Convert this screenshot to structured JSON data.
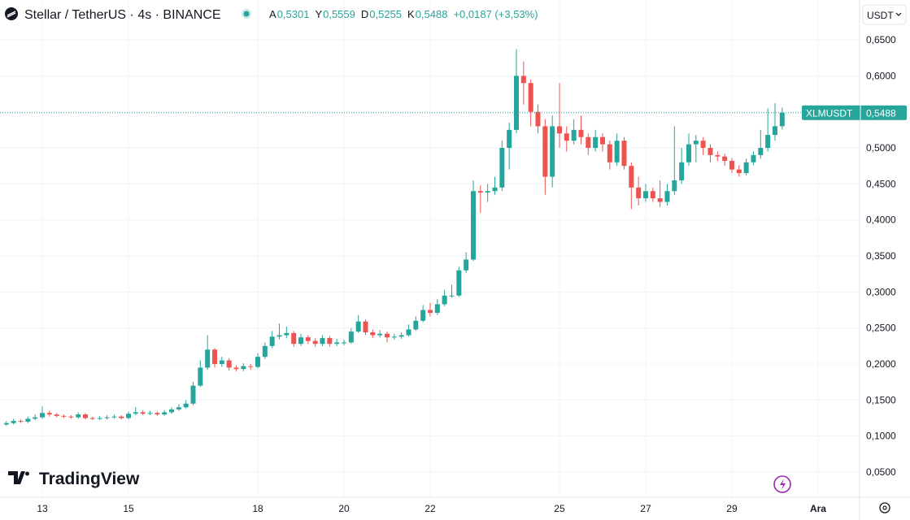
{
  "chart_data": {
    "type": "candlestick",
    "title": "Stellar / TetherUS · 4s · BINANCE",
    "ohlc_header": [
      {
        "label": "A",
        "value": "0,5301"
      },
      {
        "label": "Y",
        "value": "0,5559"
      },
      {
        "label": "D",
        "value": "0,5255"
      },
      {
        "label": "K",
        "value": "0,5488"
      }
    ],
    "change": "+0,0187 (+3,53%)",
    "currency": "USDT",
    "watermark": "TradingView",
    "symbol_tag": "XLMUSDT",
    "last_price": {
      "value": 0.5488,
      "label": "0,5488"
    },
    "up_color": "#26a69a",
    "down_color": "#ef5350",
    "grid": true,
    "ylim": [
      0.0173,
      0.7053
    ],
    "yticks": [
      {
        "value": 0.05,
        "label": "0,0500"
      },
      {
        "value": 0.1,
        "label": "0,1000"
      },
      {
        "value": 0.15,
        "label": "0,1500"
      },
      {
        "value": 0.2,
        "label": "0,2000"
      },
      {
        "value": 0.25,
        "label": "0,2500"
      },
      {
        "value": 0.3,
        "label": "0,3000"
      },
      {
        "value": 0.35,
        "label": "0,3500"
      },
      {
        "value": 0.4,
        "label": "0,4000"
      },
      {
        "value": 0.45,
        "label": "0,4500"
      },
      {
        "value": 0.5,
        "label": "0,5000"
      },
      {
        "value": 0.55,
        "label": "0,5500"
      },
      {
        "value": 0.6,
        "label": "0,6000"
      },
      {
        "value": 0.65,
        "label": "0,6500"
      }
    ],
    "categories": [
      null,
      null,
      null,
      null,
      null,
      "13",
      null,
      null,
      null,
      null,
      null,
      null,
      null,
      null,
      null,
      null,
      null,
      "15",
      null,
      null,
      null,
      null,
      null,
      null,
      null,
      null,
      null,
      null,
      null,
      null,
      null,
      null,
      null,
      null,
      null,
      "18",
      null,
      null,
      null,
      null,
      null,
      null,
      null,
      null,
      null,
      null,
      null,
      "20",
      null,
      null,
      null,
      null,
      null,
      null,
      null,
      null,
      null,
      null,
      null,
      "22",
      null,
      null,
      null,
      null,
      null,
      null,
      null,
      null,
      null,
      null,
      null,
      null,
      null,
      null,
      null,
      null,
      null,
      "25",
      null,
      null,
      null,
      null,
      null,
      null,
      null,
      null,
      null,
      null,
      null,
      "27",
      null,
      null,
      null,
      null,
      null,
      null,
      null,
      null,
      null,
      null,
      null,
      "29",
      null,
      null,
      null,
      null,
      null,
      null,
      null,
      null,
      null,
      null,
      null,
      "Ara"
    ],
    "series": [
      {
        "name": "XLMUSDT",
        "open": [
          0.116,
          0.118,
          0.121,
          0.12,
          0.124,
          0.126,
          0.132,
          0.13,
          0.128,
          0.127,
          0.126,
          0.13,
          0.125,
          0.124,
          0.125,
          0.126,
          0.127,
          0.125,
          0.131,
          0.133,
          0.131,
          0.132,
          0.13,
          0.133,
          0.137,
          0.14,
          0.145,
          0.17,
          0.195,
          0.22,
          0.2,
          0.205,
          0.195,
          0.193,
          0.197,
          0.196,
          0.21,
          0.225,
          0.238,
          0.24,
          0.243,
          0.228,
          0.237,
          0.232,
          0.228,
          0.236,
          0.228,
          0.23,
          0.23,
          0.245,
          0.259,
          0.244,
          0.24,
          0.242,
          0.237,
          0.238,
          0.24,
          0.248,
          0.26,
          0.275,
          0.271,
          0.283,
          0.295,
          0.295,
          0.33,
          0.345,
          0.44,
          0.438,
          0.44,
          0.445,
          0.5,
          0.525,
          0.6,
          0.59,
          0.55,
          0.53,
          0.46,
          0.53,
          0.52,
          0.51,
          0.525,
          0.515,
          0.5,
          0.515,
          0.505,
          0.48,
          0.51,
          0.475,
          0.445,
          0.43,
          0.44,
          0.43,
          0.425,
          0.44,
          0.455,
          0.48,
          0.505,
          0.51,
          0.5,
          0.49,
          0.488,
          0.482,
          0.47,
          0.465,
          0.48,
          0.49,
          0.5,
          0.518,
          0.5301,
          null,
          null,
          null,
          null,
          null
        ],
        "high": [
          0.121,
          0.124,
          0.123,
          0.127,
          0.13,
          0.141,
          0.135,
          0.132,
          0.13,
          0.129,
          0.133,
          0.132,
          0.127,
          0.128,
          0.129,
          0.13,
          0.129,
          0.134,
          0.14,
          0.136,
          0.135,
          0.134,
          0.136,
          0.14,
          0.144,
          0.15,
          0.175,
          0.205,
          0.24,
          0.222,
          0.21,
          0.208,
          0.198,
          0.201,
          0.2,
          0.215,
          0.23,
          0.246,
          0.256,
          0.252,
          0.246,
          0.242,
          0.24,
          0.236,
          0.24,
          0.239,
          0.235,
          0.234,
          0.25,
          0.268,
          0.262,
          0.248,
          0.247,
          0.245,
          0.242,
          0.244,
          0.255,
          0.266,
          0.282,
          0.285,
          0.29,
          0.303,
          0.31,
          0.335,
          0.355,
          0.455,
          0.448,
          0.45,
          0.46,
          0.51,
          0.535,
          0.637,
          0.62,
          0.595,
          0.56,
          0.54,
          0.545,
          0.59,
          0.53,
          0.54,
          0.545,
          0.52,
          0.525,
          0.52,
          0.51,
          0.52,
          0.515,
          0.48,
          0.46,
          0.45,
          0.445,
          0.455,
          0.45,
          0.53,
          0.5,
          0.52,
          0.518,
          0.515,
          0.505,
          0.495,
          0.492,
          0.486,
          0.476,
          0.485,
          0.495,
          0.525,
          0.555,
          0.562,
          0.5559,
          null,
          null,
          null,
          null,
          null
        ],
        "low": [
          0.114,
          0.116,
          0.118,
          0.118,
          0.122,
          0.124,
          0.127,
          0.126,
          0.125,
          0.124,
          0.124,
          0.123,
          0.122,
          0.122,
          0.123,
          0.124,
          0.123,
          0.123,
          0.129,
          0.129,
          0.129,
          0.128,
          0.128,
          0.131,
          0.135,
          0.138,
          0.143,
          0.168,
          0.192,
          0.195,
          0.196,
          0.191,
          0.19,
          0.19,
          0.192,
          0.194,
          0.207,
          0.222,
          0.234,
          0.236,
          0.224,
          0.225,
          0.228,
          0.224,
          0.225,
          0.224,
          0.225,
          0.226,
          0.228,
          0.243,
          0.24,
          0.236,
          0.237,
          0.23,
          0.234,
          0.235,
          0.238,
          0.246,
          0.258,
          0.266,
          0.268,
          0.28,
          0.292,
          0.293,
          0.326,
          0.343,
          0.41,
          0.425,
          0.435,
          0.44,
          0.47,
          0.52,
          0.56,
          0.53,
          0.52,
          0.435,
          0.445,
          0.5,
          0.495,
          0.505,
          0.505,
          0.49,
          0.495,
          0.495,
          0.47,
          0.475,
          0.47,
          0.415,
          0.42,
          0.425,
          0.425,
          0.418,
          0.42,
          0.435,
          0.45,
          0.475,
          0.48,
          0.49,
          0.48,
          0.482,
          0.475,
          0.465,
          0.46,
          0.462,
          0.476,
          0.485,
          0.495,
          0.51,
          0.5255,
          null,
          null,
          null,
          null,
          null
        ],
        "close": [
          0.118,
          0.121,
          0.12,
          0.124,
          0.126,
          0.132,
          0.13,
          0.128,
          0.127,
          0.126,
          0.13,
          0.125,
          0.124,
          0.125,
          0.126,
          0.127,
          0.125,
          0.131,
          0.133,
          0.131,
          0.132,
          0.13,
          0.133,
          0.137,
          0.14,
          0.145,
          0.17,
          0.195,
          0.22,
          0.2,
          0.205,
          0.195,
          0.193,
          0.197,
          0.196,
          0.21,
          0.225,
          0.238,
          0.24,
          0.243,
          0.228,
          0.237,
          0.232,
          0.228,
          0.236,
          0.228,
          0.23,
          0.23,
          0.245,
          0.259,
          0.244,
          0.24,
          0.242,
          0.237,
          0.238,
          0.24,
          0.248,
          0.26,
          0.275,
          0.271,
          0.283,
          0.295,
          0.295,
          0.33,
          0.345,
          0.44,
          0.438,
          0.44,
          0.445,
          0.5,
          0.525,
          0.6,
          0.59,
          0.55,
          0.53,
          0.46,
          0.53,
          0.52,
          0.51,
          0.525,
          0.515,
          0.5,
          0.515,
          0.505,
          0.48,
          0.51,
          0.475,
          0.445,
          0.43,
          0.44,
          0.43,
          0.425,
          0.44,
          0.455,
          0.48,
          0.505,
          0.51,
          0.5,
          0.49,
          0.488,
          0.482,
          0.47,
          0.465,
          0.48,
          0.49,
          0.5,
          0.518,
          0.5301,
          0.5488,
          null,
          null,
          null,
          null,
          null
        ]
      }
    ]
  }
}
